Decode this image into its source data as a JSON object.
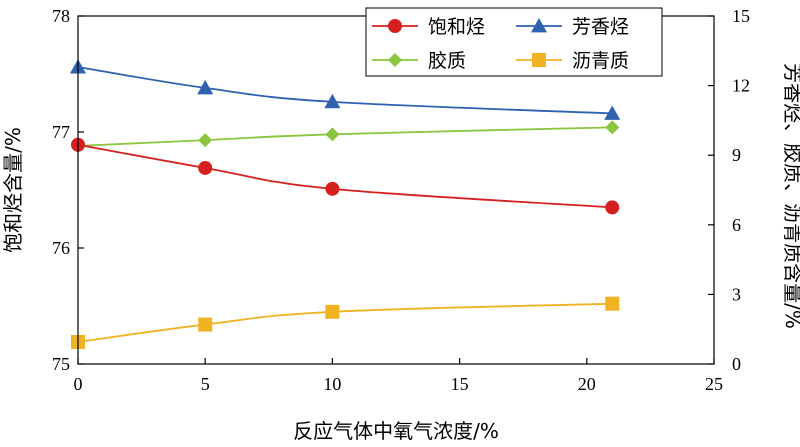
{
  "chart_data": {
    "type": "line",
    "xlabel": "反应气体中氧气浓度/%",
    "ylabel_left": "饱和烃含量/%",
    "ylabel_right": "芳香烃、胶质、沥青质含量/%",
    "xlim": [
      0,
      25
    ],
    "x_ticks": [
      0,
      5,
      10,
      15,
      20,
      25
    ],
    "ylim_left": [
      75,
      78
    ],
    "y_ticks_left": [
      75,
      76,
      77,
      78
    ],
    "ylim_right": [
      0,
      15
    ],
    "y_ticks_right": [
      0,
      3,
      6,
      9,
      12,
      15
    ],
    "grid": false,
    "legend": "top-right",
    "x": [
      0,
      5,
      10,
      21
    ],
    "series": [
      {
        "name": "饱和烃",
        "axis": "left",
        "marker": "circle",
        "color": "#d62020",
        "values": [
          76.89,
          76.69,
          76.51,
          76.35
        ]
      },
      {
        "name": "芳香烃",
        "axis": "right",
        "marker": "triangle",
        "color": "#2e62b0",
        "values": [
          12.8,
          11.9,
          11.3,
          10.8
        ]
      },
      {
        "name": "胶质",
        "axis": "right",
        "marker": "diamond",
        "color": "#8cc63f",
        "values": [
          9.4,
          9.65,
          9.9,
          10.2
        ]
      },
      {
        "name": "沥青质",
        "axis": "right",
        "marker": "square",
        "color": "#f0b323",
        "values": [
          0.95,
          1.7,
          2.25,
          2.6
        ]
      }
    ]
  }
}
